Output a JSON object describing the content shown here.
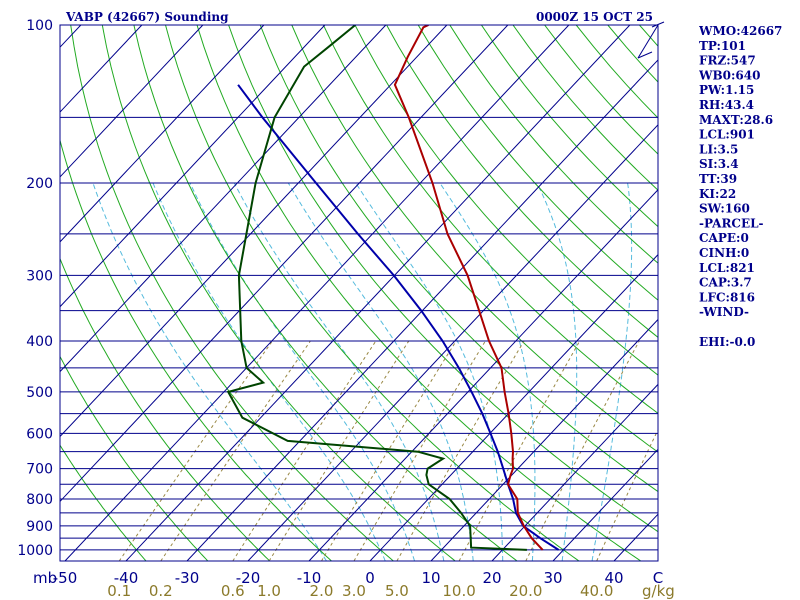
{
  "header": {
    "title": "VABP (42667) Sounding",
    "time": "0000Z 15 OCT 25"
  },
  "indices": [
    "WMO:42667",
    "TP:101",
    "FRZ:547",
    "WB0:640",
    "PW:1.15",
    "RH:43.4",
    "MAXT:28.6",
    "LCL:901",
    "LI:3.5",
    "SI:3.4",
    "TT:39",
    "KI:22",
    "SW:160",
    "-PARCEL-",
    "CAPE:0",
    "CINH:0",
    "LCL:821",
    "CAP:3.7",
    "LFC:816",
    "-WIND-",
    "",
    "EHI:-0.0"
  ],
  "chart_data": {
    "type": "skew-t",
    "pressure_unit_label": "mb",
    "mixing_ratio_unit_label": "g/kg",
    "pressure_ticks": [
      "100",
      "200",
      "300",
      "400",
      "500",
      "600",
      "700",
      "800",
      "900",
      "1000"
    ],
    "pressure_tick_values": [
      100,
      200,
      300,
      400,
      500,
      600,
      700,
      800,
      900,
      1000
    ],
    "isobars": [
      100,
      150,
      200,
      250,
      300,
      350,
      400,
      450,
      500,
      550,
      600,
      650,
      700,
      750,
      800,
      850,
      900,
      950,
      1000
    ],
    "temperature_ticks": [
      "-50",
      "-40",
      "-30",
      "-20",
      "-10",
      "0",
      "10",
      "20",
      "30",
      "40",
      "C"
    ],
    "temperature_tick_values": [
      -50,
      -40,
      -30,
      -20,
      -10,
      0,
      10,
      20,
      30,
      40
    ],
    "mixing_ratio_ticks": [
      "0.1",
      "0.2",
      "0.6",
      "1.0",
      "2.0",
      "3.0",
      "5.0",
      "10.0",
      "20.0",
      "40.0"
    ],
    "temperature_profile": [
      {
        "p": 1000,
        "t": 26.6
      },
      {
        "p": 950,
        "t": 23.0
      },
      {
        "p": 900,
        "t": 19.8
      },
      {
        "p": 850,
        "t": 16.8
      },
      {
        "p": 800,
        "t": 14.6
      },
      {
        "p": 750,
        "t": 10.8
      },
      {
        "p": 720,
        "t": 9.8
      },
      {
        "p": 700,
        "t": 9.2
      },
      {
        "p": 670,
        "t": 7.6
      },
      {
        "p": 650,
        "t": 6.6
      },
      {
        "p": 600,
        "t": 3.5
      },
      {
        "p": 550,
        "t": 0.0
      },
      {
        "p": 500,
        "t": -4.0
      },
      {
        "p": 450,
        "t": -8.2
      },
      {
        "p": 400,
        "t": -14.4
      },
      {
        "p": 350,
        "t": -20.7
      },
      {
        "p": 300,
        "t": -28.0
      },
      {
        "p": 250,
        "t": -37.7
      },
      {
        "p": 200,
        "t": -48.0
      },
      {
        "p": 150,
        "t": -62.0
      },
      {
        "p": 130,
        "t": -69.3
      },
      {
        "p": 115,
        "t": -71.5
      },
      {
        "p": 101,
        "t": -73.5
      },
      {
        "p": 100,
        "t": -73.0
      }
    ],
    "dewpoint_profile": [
      {
        "p": 1000,
        "t": 24.0
      },
      {
        "p": 990,
        "t": 14.5
      },
      {
        "p": 950,
        "t": 13.0
      },
      {
        "p": 900,
        "t": 11.0
      },
      {
        "p": 850,
        "t": 7.5
      },
      {
        "p": 800,
        "t": 3.5
      },
      {
        "p": 750,
        "t": -2.2
      },
      {
        "p": 720,
        "t": -4.0
      },
      {
        "p": 700,
        "t": -4.8
      },
      {
        "p": 670,
        "t": -3.8
      },
      {
        "p": 650,
        "t": -9.0
      },
      {
        "p": 620,
        "t": -32.0
      },
      {
        "p": 560,
        "t": -43.0
      },
      {
        "p": 500,
        "t": -49.3
      },
      {
        "p": 480,
        "t": -45.0
      },
      {
        "p": 450,
        "t": -50.0
      },
      {
        "p": 400,
        "t": -55.0
      },
      {
        "p": 300,
        "t": -65.5
      },
      {
        "p": 200,
        "t": -77.0
      },
      {
        "p": 150,
        "t": -84.0
      },
      {
        "p": 120,
        "t": -87.0
      },
      {
        "p": 110,
        "t": -86.0
      },
      {
        "p": 100,
        "t": -85.0
      }
    ],
    "parcel_profile": [
      {
        "p": 1000,
        "t": 29.2
      },
      {
        "p": 950,
        "t": 24.4
      },
      {
        "p": 900,
        "t": 19.7
      },
      {
        "p": 850,
        "t": 16.5
      },
      {
        "p": 800,
        "t": 13.9
      },
      {
        "p": 750,
        "t": 10.8
      },
      {
        "p": 700,
        "t": 7.6
      },
      {
        "p": 650,
        "t": 4.1
      },
      {
        "p": 600,
        "t": 0.1
      },
      {
        "p": 550,
        "t": -4.3
      },
      {
        "p": 500,
        "t": -9.4
      },
      {
        "p": 450,
        "t": -15.2
      },
      {
        "p": 400,
        "t": -22.0
      },
      {
        "p": 350,
        "t": -30.2
      },
      {
        "p": 300,
        "t": -40.1
      },
      {
        "p": 250,
        "t": -52.4
      },
      {
        "p": 200,
        "t": -67.1
      },
      {
        "p": 150,
        "t": -86.0
      },
      {
        "p": 130,
        "t": -95.0
      }
    ],
    "colors": {
      "frame": "#00008b",
      "isotherm": "#00008b",
      "isobar": "#00008b",
      "dry_adiabat": "#22aa22",
      "moist_adiabat": "#55bbdd",
      "mixing_ratio": "#998844",
      "temperature": "#aa0000",
      "dewpoint": "#004400",
      "parcel": "#0000aa",
      "mixing_ratio_label": "#8b7a2b"
    }
  }
}
